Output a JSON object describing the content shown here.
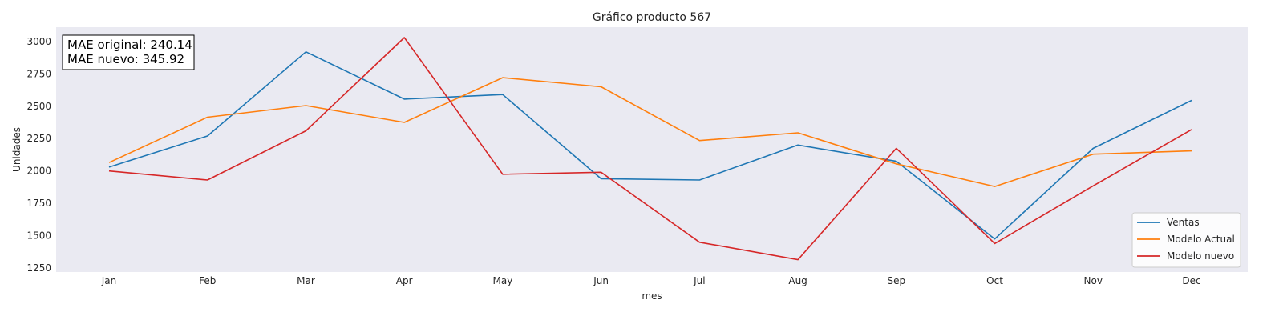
{
  "chart_data": {
    "type": "line",
    "title": "Gráfico producto 567",
    "xlabel": "mes",
    "ylabel": "Unidades",
    "categories": [
      "Jan",
      "Feb",
      "Mar",
      "Apr",
      "May",
      "Jun",
      "Jul",
      "Aug",
      "Sep",
      "Oct",
      "Nov",
      "Dec"
    ],
    "ylim": [
      1220,
      3110
    ],
    "yticks": [
      1250,
      1500,
      1750,
      2000,
      2250,
      2500,
      2750,
      3000
    ],
    "grid": false,
    "legend_position": "lower-right",
    "series": [
      {
        "name": "Ventas",
        "color": "#1f77b4",
        "values": [
          2030,
          2270,
          2920,
          2555,
          2590,
          1940,
          1930,
          2200,
          2075,
          1475,
          2175,
          2545
        ]
      },
      {
        "name": "Modelo Actual",
        "color": "#ff7f0e",
        "values": [
          2065,
          2415,
          2505,
          2375,
          2720,
          2650,
          2235,
          2295,
          2055,
          1880,
          2130,
          2155
        ]
      },
      {
        "name": "Modelo nuevo",
        "color": "#d62728",
        "values": [
          2000,
          1930,
          2310,
          3030,
          1975,
          1990,
          1450,
          1315,
          2175,
          1440,
          1885,
          2320
        ]
      }
    ],
    "annotation": {
      "lines": [
        "MAE original: 240.14",
        "MAE nuevo: 345.92"
      ],
      "position": "top-left"
    }
  }
}
